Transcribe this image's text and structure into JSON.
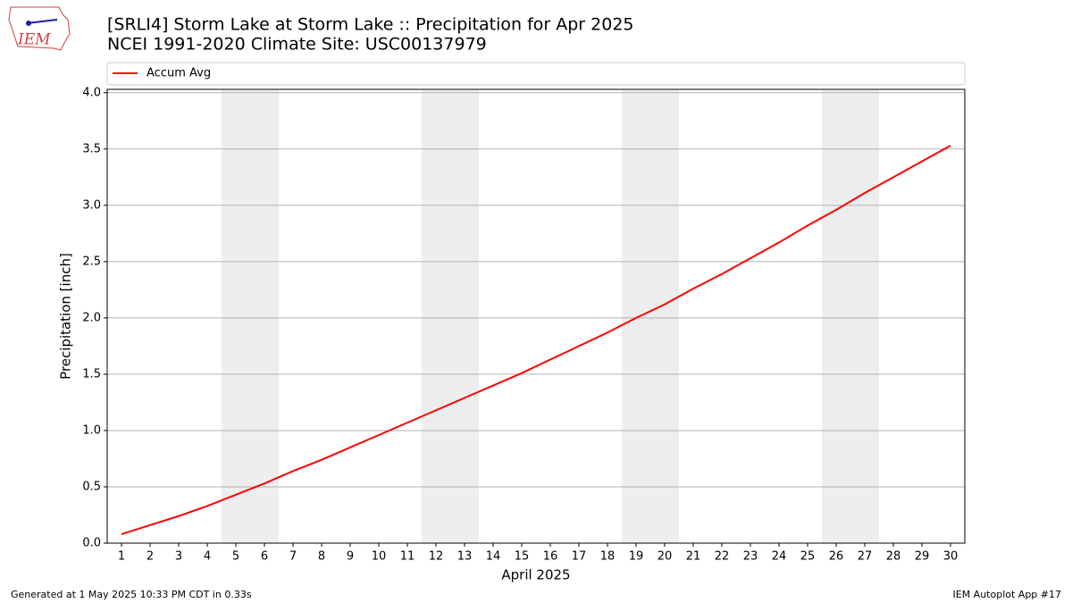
{
  "chart_data": {
    "type": "line",
    "title": "[SRLI4] Storm Lake at Storm Lake :: Precipitation for Apr 2025",
    "subtitle": "NCEI 1991-2020 Climate Site: USC00137979",
    "xlabel": "April 2025",
    "ylabel": "Precipitation [inch]",
    "x": [
      1,
      2,
      3,
      4,
      5,
      6,
      7,
      8,
      9,
      10,
      11,
      12,
      13,
      14,
      15,
      16,
      17,
      18,
      19,
      20,
      21,
      22,
      23,
      24,
      25,
      26,
      27,
      28,
      29,
      30
    ],
    "series": [
      {
        "name": "Accum Avg",
        "color": "#ff0000",
        "values": [
          0.08,
          0.16,
          0.24,
          0.33,
          0.43,
          0.53,
          0.64,
          0.74,
          0.85,
          0.96,
          1.07,
          1.18,
          1.29,
          1.4,
          1.51,
          1.63,
          1.75,
          1.87,
          2.0,
          2.12,
          2.26,
          2.39,
          2.53,
          2.67,
          2.82,
          2.96,
          3.11,
          3.25,
          3.39,
          3.53
        ]
      }
    ],
    "xlim": [
      0.5,
      30.5
    ],
    "ylim": [
      0,
      4.03
    ],
    "xticks": [
      1,
      2,
      3,
      4,
      5,
      6,
      7,
      8,
      9,
      10,
      11,
      12,
      13,
      14,
      15,
      16,
      17,
      18,
      19,
      20,
      21,
      22,
      23,
      24,
      25,
      26,
      27,
      28,
      29,
      30
    ],
    "yticks": [
      {
        "value": 0,
        "label": "0.0"
      },
      {
        "value": 0.5,
        "label": "0.5"
      },
      {
        "value": 1,
        "label": "1.0"
      },
      {
        "value": 1.5,
        "label": "1.5"
      },
      {
        "value": 2,
        "label": "2.0"
      },
      {
        "value": 2.5,
        "label": "2.5"
      },
      {
        "value": 3,
        "label": "3.0"
      },
      {
        "value": 3.5,
        "label": "3.5"
      },
      {
        "value": 4,
        "label": "4.0"
      }
    ],
    "shaded_spans": [
      [
        4.5,
        6.5
      ],
      [
        11.5,
        13.5
      ],
      [
        18.5,
        20.5
      ],
      [
        25.5,
        27.5
      ]
    ],
    "shade_color": "#eeeeee",
    "grid": true,
    "legend": "top"
  },
  "logo": {
    "text": "IEM"
  },
  "footer": {
    "left": "Generated at 1 May 2025 10:33 PM CDT in 0.33s",
    "right": "IEM Autoplot App #17"
  }
}
